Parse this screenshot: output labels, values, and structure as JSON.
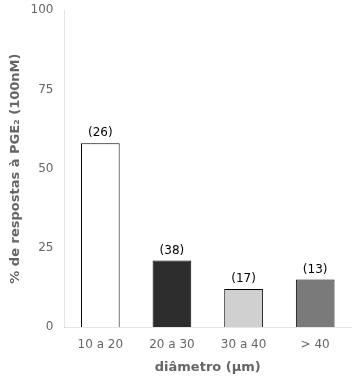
{
  "chart_data": {
    "type": "bar",
    "categories": [
      "10 a 20",
      "20 a 30",
      "30 a 40",
      "> 40"
    ],
    "values": [
      58,
      21,
      12,
      15
    ],
    "colors": [
      "#ffffff",
      "#2d2d2d",
      "#d0d0d0",
      "#7a7a7a"
    ],
    "annotations": [
      "(26)",
      "(38)",
      "(17)",
      "(13)"
    ],
    "xlabel": "diâmetro (μm)",
    "ylabel": "% de respostas à PGE₂ (100nM)",
    "ylim": [
      0,
      100
    ],
    "yticks": [
      0,
      25,
      50,
      75,
      100
    ],
    "grid": false
  }
}
